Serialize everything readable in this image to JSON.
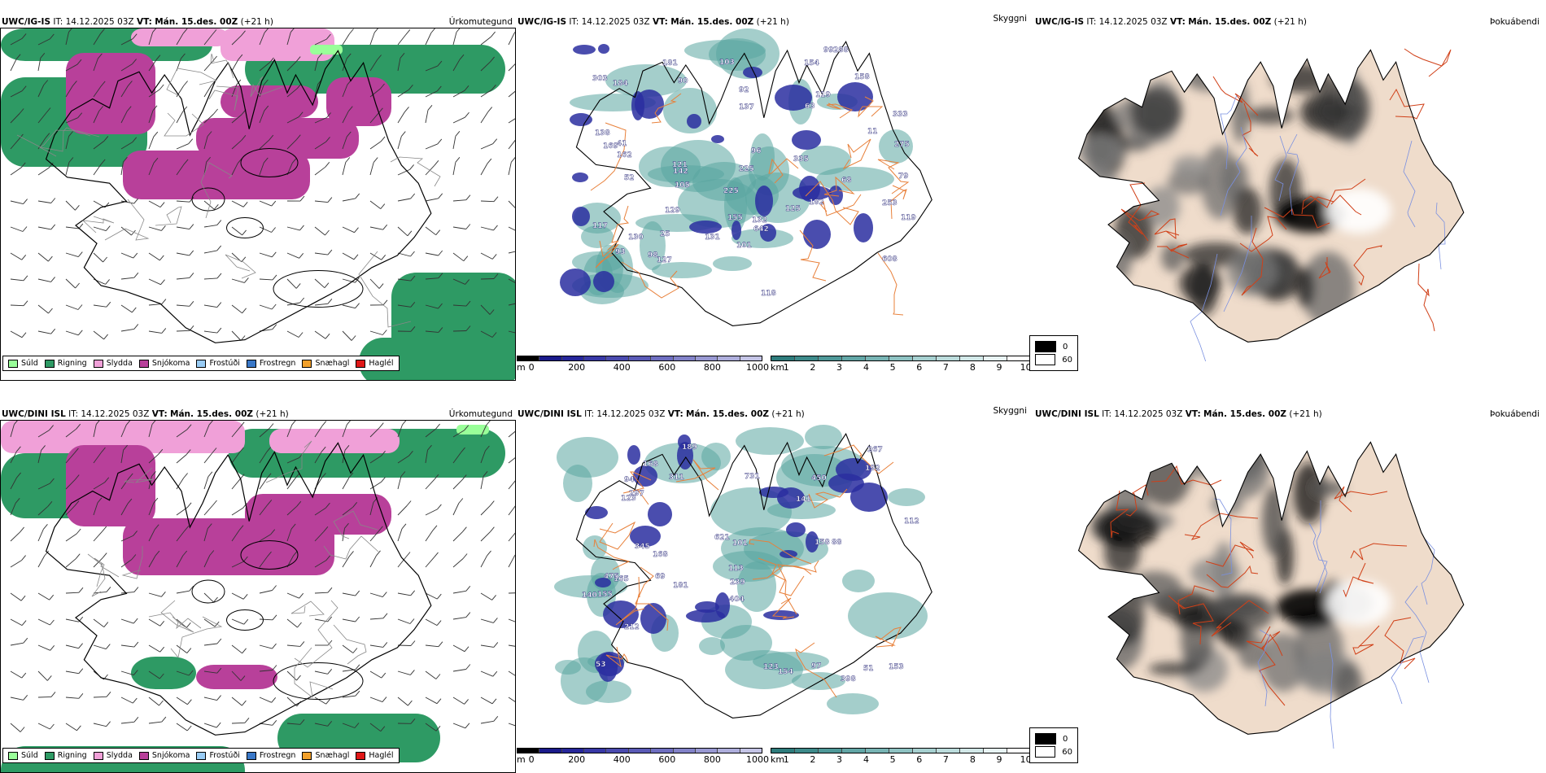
{
  "rows": [
    {
      "precip": {
        "model": "UWC/IG-IS",
        "it_label": "IT:",
        "it_value": "14.12.2025 03Z",
        "vt_label": "VT:",
        "vt_value": "Mán. 15.des. 00Z",
        "lead": "(+21 h)",
        "title_right": "Úrkomutegund"
      },
      "cloud": {
        "model": "UWC/IG-IS",
        "it_label": "IT:",
        "it_value": "14.12.2025 03Z",
        "vt_label": "VT:",
        "vt_value": "Mán. 15.des. 00Z",
        "lead": "(+21 h)",
        "title_right": "Skyggni",
        "labels": [
          "138",
          "119",
          "52",
          "68",
          "101",
          "333",
          "93",
          "90",
          "118",
          "105",
          "288",
          "181",
          "154",
          "25",
          "131",
          "125",
          "117",
          "121",
          "155",
          "137",
          "142",
          "225",
          "253",
          "119",
          "169",
          "63",
          "608",
          "642",
          "41",
          "127",
          "98",
          "96",
          "79",
          "103",
          "129",
          "92",
          "132",
          "335",
          "184",
          "158",
          "303",
          "130",
          "182",
          "99",
          "275",
          "225",
          "162",
          "11"
        ]
      },
      "fog": {
        "model": "UWC/IG-IS",
        "it_label": "IT:",
        "it_value": "14.12.2025 03Z",
        "vt_label": "VT:",
        "vt_value": "Mán. 15.des. 00Z",
        "lead": "(+21 h)",
        "title_right": "Þokuábendi"
      }
    },
    {
      "precip": {
        "model": "UWC/DINI ISL",
        "it_label": "IT:",
        "it_value": "14.12.2025 03Z",
        "vt_label": "VT:",
        "vt_value": "Mán. 15.des. 00Z",
        "lead": "(+21 h)",
        "title_right": "Úrkomutegund"
      },
      "cloud": {
        "model": "UWC/DINI ISL",
        "it_label": "IT:",
        "it_value": "14.12.2025 03Z",
        "vt_label": "VT:",
        "vt_value": "Mán. 15.des. 00Z",
        "lead": "(+21 h)",
        "title_right": "Skyggni",
        "labels": [
          "168",
          "181",
          "101",
          "69",
          "165",
          "212",
          "140",
          "398",
          "404",
          "267",
          "450",
          "88",
          "168",
          "345",
          "621",
          "311",
          "731",
          "97",
          "113",
          "155",
          "112",
          "475",
          "297",
          "154",
          "239",
          "123",
          "192",
          "153",
          "189",
          "94",
          "51",
          "53",
          "158",
          "123",
          "141"
        ]
      },
      "fog": {
        "model": "UWC/DINI ISL",
        "it_label": "IT:",
        "it_value": "14.12.2025 03Z",
        "vt_label": "VT:",
        "vt_value": "Mán. 15.des. 00Z",
        "lead": "(+21 h)",
        "title_right": "Þokuábendi"
      }
    }
  ],
  "precip_legend": [
    {
      "label": "Súld",
      "color": "#99ff99"
    },
    {
      "label": "Rigning",
      "color": "#2e9a64"
    },
    {
      "label": "Slydda",
      "color": "#f0a0d8"
    },
    {
      "label": "Snjókoma",
      "color": "#b8409a"
    },
    {
      "label": "Frostúði",
      "color": "#99ccf5"
    },
    {
      "label": "Frostregn",
      "color": "#3a78c8"
    },
    {
      "label": "Snæhagl",
      "color": "#f2a02a"
    },
    {
      "label": "Haglél",
      "color": "#e01818"
    }
  ],
  "ceiling_bar": {
    "unit": "m",
    "ticks": [
      "0",
      "200",
      "400",
      "600",
      "800",
      "1000"
    ],
    "colors": [
      "#000000",
      "#1a1a8a",
      "#26269a",
      "#3838a6",
      "#4a4aae",
      "#5a5ab6",
      "#6e6ec0",
      "#8282c8",
      "#9898d2",
      "#aeaedc",
      "#c4c4e6"
    ]
  },
  "visibility_bar": {
    "unit": "km",
    "ticks": [
      "1",
      "2",
      "3",
      "4",
      "5",
      "6",
      "7",
      "8",
      "9",
      "10"
    ],
    "colors": [
      "#2e7c7c",
      "#3d8a8a",
      "#4e9898",
      "#62a6a6",
      "#78b4b4",
      "#8ec2c2",
      "#a6d0d0",
      "#bcdcdc",
      "#d2e8e8",
      "#e8f4f4",
      "#ffffff"
    ]
  },
  "fog_legend": {
    "items": [
      {
        "label": "0",
        "color": "#000000"
      },
      {
        "label": "60",
        "color": "#ffffff"
      }
    ]
  },
  "colors": {
    "land_fog": "#efdccb",
    "road": "#e8803a",
    "road_red": "#d04018",
    "river": "#7a90e0",
    "coast": "#000000"
  }
}
